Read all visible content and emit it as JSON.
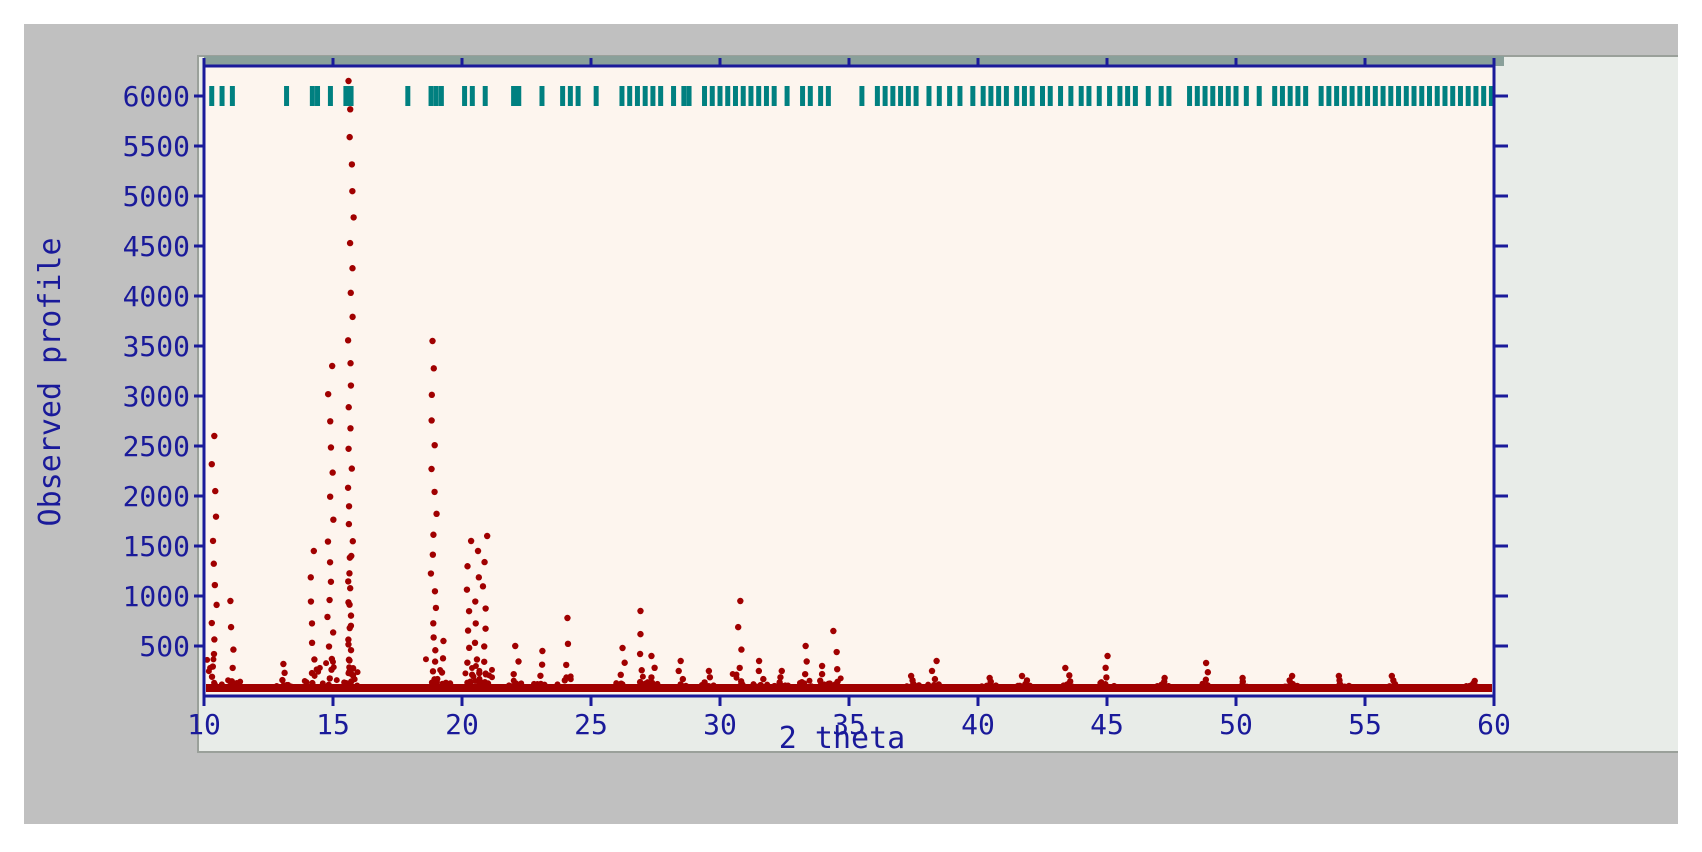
{
  "chart_data": {
    "type": "scatter",
    "xlabel": "2 theta",
    "ylabel": "Observed profile",
    "xlim": [
      10,
      60
    ],
    "ylim": [
      0,
      6300
    ],
    "x_ticks": [
      10,
      15,
      20,
      25,
      30,
      35,
      40,
      45,
      50,
      55,
      60
    ],
    "x_tick_labels": [
      "10",
      "15",
      "20",
      "25",
      "30",
      "35",
      "40",
      "45",
      "50",
      "55",
      "60"
    ],
    "y_ticks": [
      500,
      1000,
      1500,
      2000,
      2500,
      3000,
      3500,
      4000,
      4500,
      5000,
      5500,
      6000
    ],
    "y_tick_labels": [
      "500",
      "1000",
      "1500",
      "2000",
      "2500",
      "3000",
      "3500",
      "4000",
      "4500",
      "5000",
      "5500",
      "6000"
    ],
    "grid": false,
    "colors": {
      "observed": "#a00000",
      "reflections": "#008080",
      "axes": "#1a1a9a",
      "plot_background": "#fdf5ee",
      "frame_background": "#c0c0c0"
    },
    "series": [
      {
        "kind": "points",
        "baseline": 80,
        "peaks": [
          {
            "x": 10.4,
            "y": 2600
          },
          {
            "x": 11.1,
            "y": 950
          },
          {
            "x": 13.1,
            "y": 320
          },
          {
            "x": 14.2,
            "y": 1450
          },
          {
            "x": 14.9,
            "y": 3300
          },
          {
            "x": 15.7,
            "y": 6150
          },
          {
            "x": 15.6,
            "y": 1400
          },
          {
            "x": 18.9,
            "y": 3550
          },
          {
            "x": 19.3,
            "y": 550
          },
          {
            "x": 20.3,
            "y": 1550
          },
          {
            "x": 20.6,
            "y": 1450
          },
          {
            "x": 20.9,
            "y": 1600
          },
          {
            "x": 22.1,
            "y": 500
          },
          {
            "x": 23.1,
            "y": 450
          },
          {
            "x": 24.0,
            "y": 780
          },
          {
            "x": 26.2,
            "y": 480
          },
          {
            "x": 27.0,
            "y": 850
          },
          {
            "x": 27.4,
            "y": 400
          },
          {
            "x": 28.5,
            "y": 350
          },
          {
            "x": 29.5,
            "y": 250
          },
          {
            "x": 30.8,
            "y": 950
          },
          {
            "x": 31.6,
            "y": 350
          },
          {
            "x": 32.4,
            "y": 250
          },
          {
            "x": 33.3,
            "y": 500
          },
          {
            "x": 34.0,
            "y": 300
          },
          {
            "x": 34.5,
            "y": 650
          },
          {
            "x": 37.5,
            "y": 200
          },
          {
            "x": 38.3,
            "y": 350
          },
          {
            "x": 40.4,
            "y": 180
          },
          {
            "x": 41.8,
            "y": 200
          },
          {
            "x": 43.5,
            "y": 280
          },
          {
            "x": 45.0,
            "y": 400
          },
          {
            "x": 47.2,
            "y": 180
          },
          {
            "x": 48.8,
            "y": 330
          },
          {
            "x": 50.2,
            "y": 180
          },
          {
            "x": 52.1,
            "y": 200
          },
          {
            "x": 54.1,
            "y": 200
          },
          {
            "x": 56.1,
            "y": 200
          },
          {
            "x": 59.2,
            "y": 150
          }
        ]
      },
      {
        "kind": "reflection_ticks",
        "level": 6000,
        "x": [
          10.3,
          10.7,
          11.1,
          13.2,
          14.2,
          14.4,
          14.9,
          15.5,
          15.6,
          15.7,
          17.9,
          18.8,
          19.0,
          19.2,
          20.1,
          20.4,
          20.9,
          22.0,
          22.1,
          22.2,
          23.1,
          23.9,
          24.2,
          24.5,
          25.2,
          26.2,
          26.5,
          26.8,
          27.1,
          27.4,
          27.7,
          28.2,
          28.6,
          28.8,
          29.4,
          29.7,
          30.0,
          30.3,
          30.6,
          30.9,
          31.2,
          31.5,
          31.8,
          32.1,
          32.6,
          33.2,
          33.5,
          33.9,
          34.2,
          35.5,
          36.1,
          36.4,
          36.7,
          37.0,
          37.3,
          37.6,
          38.1,
          38.5,
          38.9,
          39.3,
          39.8,
          40.2,
          40.5,
          40.8,
          41.1,
          41.5,
          41.8,
          42.1,
          42.5,
          42.8,
          43.2,
          43.6,
          44.0,
          44.3,
          44.7,
          45.1,
          45.5,
          45.8,
          46.1,
          46.6,
          47.1,
          47.4,
          48.2,
          48.5,
          48.8,
          49.1,
          49.4,
          49.7,
          50.0,
          50.4,
          50.9,
          51.5,
          51.8,
          52.1,
          52.4,
          52.7,
          53.3,
          53.6,
          53.9,
          54.2,
          54.5,
          54.8,
          55.1,
          55.4,
          55.7,
          56.0,
          56.3,
          56.6,
          56.9,
          57.2,
          57.5,
          57.8,
          58.1,
          58.4,
          58.7,
          59.0,
          59.3,
          59.6,
          59.9
        ]
      }
    ]
  }
}
